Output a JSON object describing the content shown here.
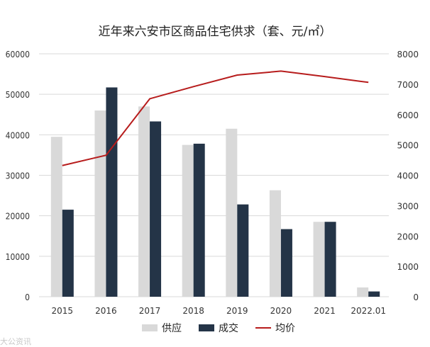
{
  "chart_data": {
    "type": "bar+line",
    "title": "近年来六安市区商品住宅供求（套、元/㎡）",
    "categories": [
      "2015",
      "2016",
      "2017",
      "2018",
      "2019",
      "2020",
      "2021",
      "2022.01"
    ],
    "series": [
      {
        "name": "供应",
        "kind": "bar",
        "axis": "left",
        "color": "#d9d9d9",
        "values": [
          39500,
          46000,
          47000,
          37500,
          41500,
          26300,
          18500,
          2300
        ]
      },
      {
        "name": "成交",
        "kind": "bar",
        "axis": "left",
        "color": "#243447",
        "values": [
          21500,
          51700,
          43300,
          37800,
          22800,
          16700,
          18500,
          1300
        ]
      },
      {
        "name": "均价",
        "kind": "line",
        "axis": "right",
        "color": "#b71c1c",
        "values": [
          4320,
          4660,
          6520,
          6920,
          7300,
          7430,
          7250,
          7060
        ]
      }
    ],
    "y_left": {
      "range": [
        0,
        60000
      ],
      "ticks": [
        "0",
        "10000",
        "20000",
        "30000",
        "40000",
        "50000",
        "60000"
      ]
    },
    "y_right": {
      "range": [
        0,
        8000
      ],
      "ticks": [
        "0",
        "1000",
        "2000",
        "3000",
        "4000",
        "5000",
        "6000",
        "7000",
        "8000"
      ]
    },
    "grid": true,
    "legend_position": "bottom"
  },
  "watermark": {
    "text": "大公资讯"
  }
}
